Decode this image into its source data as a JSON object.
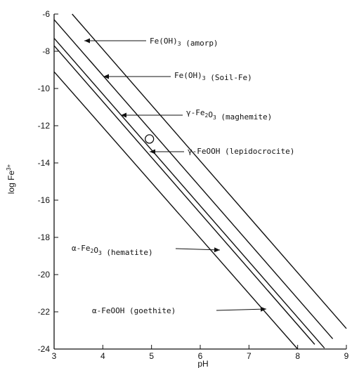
{
  "chart_data": {
    "type": "line",
    "title": "",
    "xlabel": "pH",
    "ylabel": "log Fe",
    "ylabel_sup": "3+",
    "xlim": [
      3,
      9
    ],
    "ylim": [
      -24,
      -6
    ],
    "x_ticks": [
      3,
      4,
      5,
      6,
      7,
      8,
      9
    ],
    "y_ticks": [
      -6,
      -8,
      -10,
      -12,
      -14,
      -16,
      -18,
      -20,
      -22,
      -24
    ],
    "grid": false,
    "series": [
      {
        "key": "amorp",
        "name": "Fe(OH)3 (amorp)",
        "label_main": "Fe(OH)",
        "label_sub": "3",
        "label_tail": " (amorp)",
        "x": [
          3.37,
          9.0
        ],
        "y": [
          -6.0,
          -22.9
        ]
      },
      {
        "key": "soil",
        "name": "Fe(OH)3 (Soil-Fe)",
        "label_main": "Fe(OH)",
        "label_sub": "3",
        "label_tail": " (Soil-Fe)",
        "x": [
          3.0,
          8.72
        ],
        "y": [
          -6.3,
          -23.45
        ]
      },
      {
        "key": "maghemite",
        "name": "γ-Fe2O3 (maghemite)",
        "label_main": "γ-Fe",
        "label_sub": "2",
        "label_mid": "O",
        "label_sub2": "3",
        "label_tail": " (maghemite)",
        "x": [
          3.0,
          8.55
        ],
        "y": [
          -7.3,
          -23.95
        ]
      },
      {
        "key": "lepidocrocite",
        "name": "γ-FeOOH (lepidocrocite)",
        "label_main": "γ-FeOOH (lepidocrocite)",
        "x": [
          3.0,
          8.35
        ],
        "y": [
          -7.7,
          -23.75
        ]
      },
      {
        "key": "hematite",
        "name": "α-Fe2O3 (hematite)",
        "label_main": "α-Fe",
        "label_sub": "2",
        "label_mid": "O",
        "label_sub2": "3",
        "label_tail": " (hematite)",
        "x": [
          3.0,
          8.0
        ],
        "y": [
          -9.1,
          -24.0
        ]
      },
      {
        "key": "goethite",
        "name": "α-FeOOH (goethite)",
        "label_main": "α-FeOOH   (goethite)",
        "x": [
          3.0,
          8.0
        ],
        "y": [
          -9.1,
          -24.0
        ]
      }
    ],
    "annotation_marker": {
      "x": 5.0,
      "y": -12.6
    }
  }
}
